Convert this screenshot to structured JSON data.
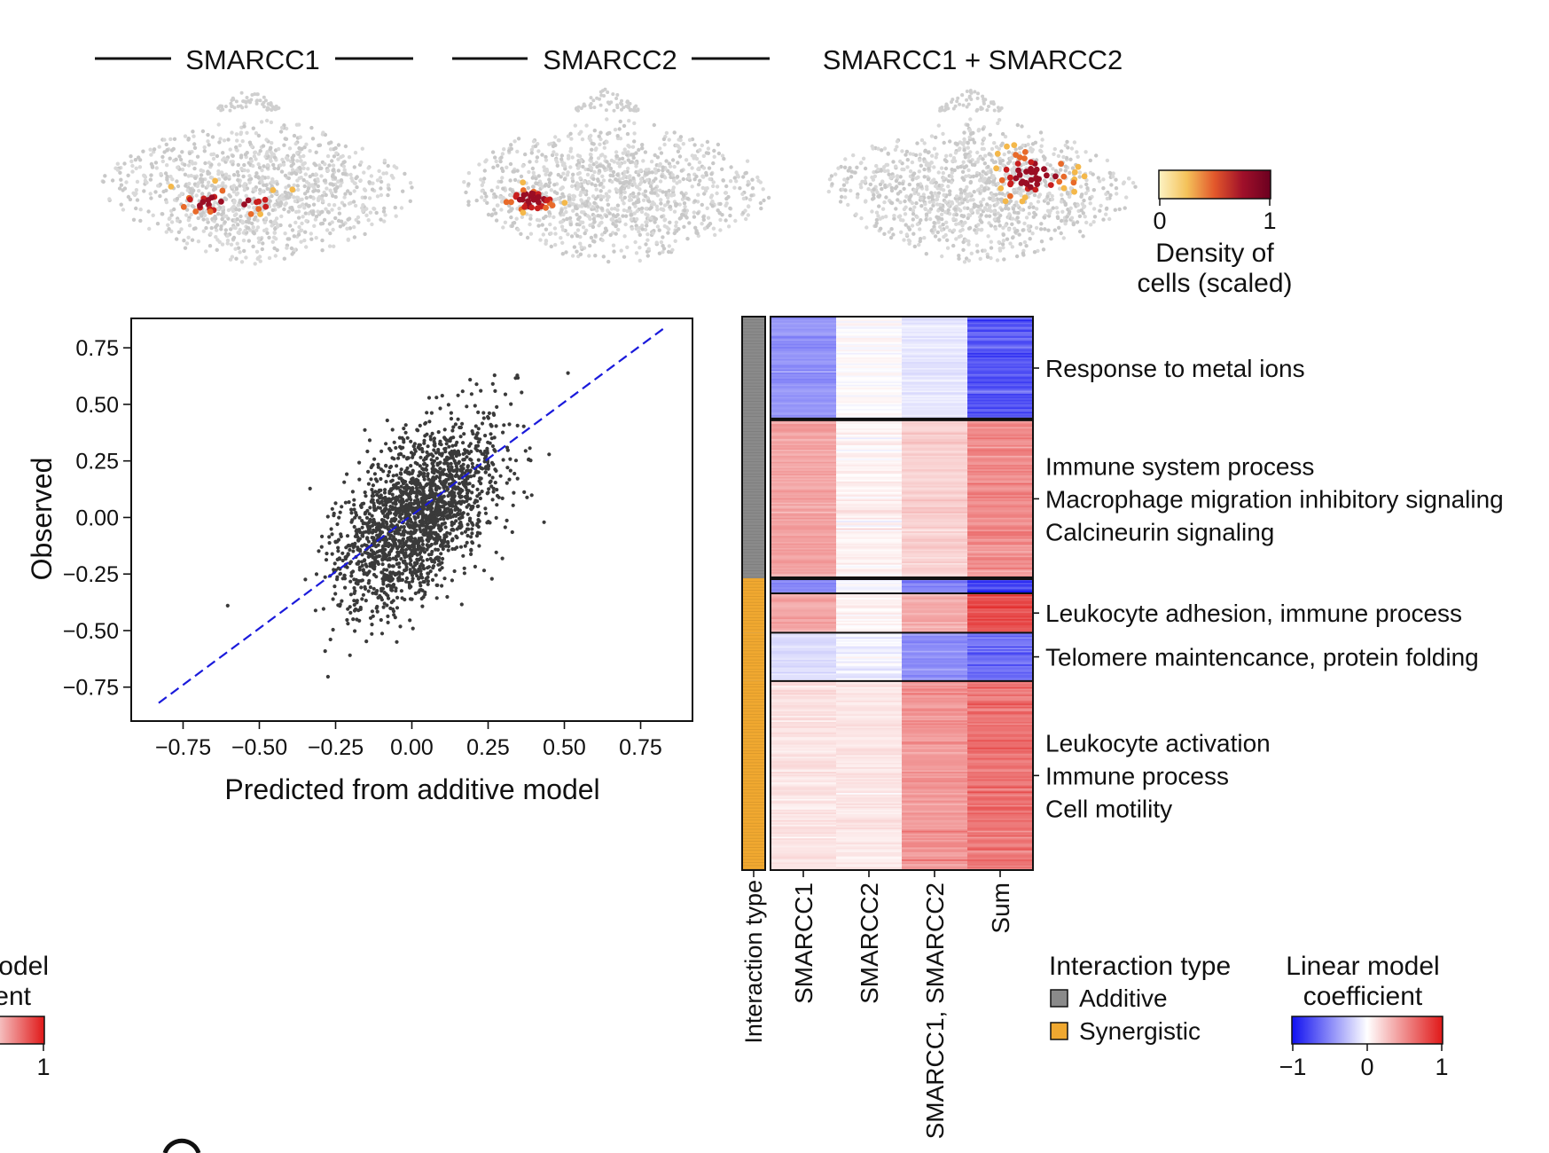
{
  "umap": {
    "panels": [
      {
        "title": "SMARCC1",
        "bars": true
      },
      {
        "title": "SMARCC2",
        "bars": true
      },
      {
        "title": "SMARCC1 + SMARCC2",
        "bars": false
      }
    ],
    "colorbar": {
      "min_label": "0",
      "max_label": "1",
      "title_line1": "Density of",
      "title_line2": "cells (scaled)",
      "colors": [
        "#fdf3c4",
        "#f4c25a",
        "#e2572b",
        "#a0102a",
        "#6b0020"
      ]
    }
  },
  "chart_data": [
    {
      "type": "scatter",
      "xlabel": "Predicted from additive model",
      "ylabel": "Observed",
      "xlim": [
        -0.92,
        0.92
      ],
      "ylim": [
        -0.9,
        0.88
      ],
      "xticks": [
        "−0.75",
        "−0.50",
        "−0.25",
        "0.00",
        "0.25",
        "0.50",
        "0.75"
      ],
      "xtick_values": [
        -0.75,
        -0.5,
        -0.25,
        0,
        0.25,
        0.5,
        0.75
      ],
      "yticks": [
        "0.75",
        "0.50",
        "0.25",
        "0.00",
        "−0.25",
        "−0.50",
        "−0.75"
      ],
      "ytick_values": [
        0.75,
        0.5,
        0.25,
        0,
        -0.25,
        -0.5,
        -0.75
      ],
      "reference_line": {
        "style": "dashed",
        "color": "#1a1adb",
        "x": [
          -0.83,
          0.83
        ],
        "y": [
          -0.82,
          0.84
        ]
      },
      "cloud": {
        "n_points": 2000,
        "x_mean": 0.02,
        "x_sd": 0.13,
        "y_mean": 0.01,
        "y_sd": 0.2,
        "correlation": 0.55,
        "color": "#3a3a3a"
      }
    },
    {
      "type": "heatmap",
      "columns": [
        "SMARCC1",
        "SMARCC2",
        "SMARCC1, SMARCC2",
        "Sum"
      ],
      "annotation_column_label": "Interaction type",
      "blocks": [
        {
          "label": "Response to metal ions",
          "interaction": "Additive",
          "rows": 68,
          "means": [
            -0.45,
            0.0,
            -0.1,
            -0.7
          ]
        },
        {
          "label": "Immune system process\nMacrophage migration inhibitory signaling\nCalcineurin signaling",
          "interaction": "Additive",
          "rows": 105,
          "means": [
            0.4,
            0.05,
            0.2,
            0.5
          ]
        },
        {
          "label": "",
          "interaction": "Synergistic",
          "rows": 10,
          "means": [
            -0.5,
            -0.05,
            -0.5,
            -0.85
          ]
        },
        {
          "label": "Leukocyte adhesion, immune process",
          "interaction": "Synergistic",
          "rows": 26,
          "means": [
            0.4,
            0.05,
            0.35,
            0.75
          ]
        },
        {
          "label": "Telomere maintencance, protein folding",
          "interaction": "Synergistic",
          "rows": 32,
          "means": [
            -0.15,
            -0.05,
            -0.45,
            -0.6
          ]
        },
        {
          "label": "Leukocyte activation\nImmune process\nCell motility",
          "interaction": "Synergistic",
          "rows": 125,
          "means": [
            0.12,
            0.1,
            0.45,
            0.6
          ]
        }
      ],
      "legend": {
        "title": "Interaction type",
        "items": [
          {
            "label": "Additive",
            "color": "#8a8a8a"
          },
          {
            "label": "Synergistic",
            "color": "#f0a830"
          }
        ]
      },
      "colorbar": {
        "title_line1": "Linear model",
        "title_line2": "coefficient",
        "min": -1,
        "max": 1,
        "ticks": [
          "−1",
          "0",
          "1"
        ],
        "colors": [
          "#1010f0",
          "#ffffff",
          "#e01818"
        ]
      }
    }
  ],
  "clipped": {
    "title_line1": "odel",
    "title_line2": "ent",
    "tick": "1"
  }
}
